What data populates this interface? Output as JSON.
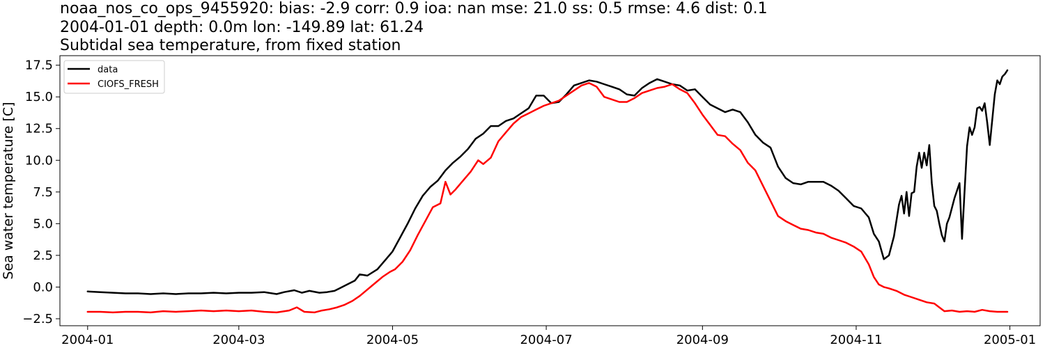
{
  "chart_data": {
    "type": "line",
    "title_lines": [
      "noaa_nos_co_ops_9455920: bias: -2.9  corr: 0.9  ioa: nan  mse: 21.0  ss: 0.5  rmse: 4.6  dist: 0.1",
      "2004-01-01 depth: 0.0m lon: -149.89 lat: 61.24",
      "Subtidal sea temperature, from fixed station"
    ],
    "xlabel": "",
    "ylabel": "Sea water temperature [C]",
    "x_ticks": [
      {
        "label": "2004-01",
        "day": 0
      },
      {
        "label": "2004-03",
        "day": 60
      },
      {
        "label": "2004-05",
        "day": 121
      },
      {
        "label": "2004-07",
        "day": 182
      },
      {
        "label": "2004-09",
        "day": 244
      },
      {
        "label": "2004-11",
        "day": 305
      },
      {
        "label": "2005-01",
        "day": 366
      }
    ],
    "y_ticks": [
      "17.5",
      "15.0",
      "12.5",
      "10.0",
      "7.5",
      "5.0",
      "2.5",
      "0.0",
      "−2.5"
    ],
    "y_tick_values": [
      17.5,
      15.0,
      12.5,
      10.0,
      7.5,
      5.0,
      2.5,
      0.0,
      -2.5
    ],
    "xlim": [
      -11,
      378
    ],
    "ylim": [
      -3.05,
      18.25
    ],
    "legend": {
      "position": "top-left",
      "entries": [
        "data",
        "CIOFS_FRESH"
      ]
    },
    "series": [
      {
        "name": "data",
        "color": "#000000",
        "points": [
          [
            0,
            -0.35
          ],
          [
            5,
            -0.4
          ],
          [
            10,
            -0.45
          ],
          [
            15,
            -0.5
          ],
          [
            20,
            -0.5
          ],
          [
            25,
            -0.55
          ],
          [
            30,
            -0.5
          ],
          [
            35,
            -0.55
          ],
          [
            40,
            -0.5
          ],
          [
            45,
            -0.5
          ],
          [
            50,
            -0.45
          ],
          [
            55,
            -0.5
          ],
          [
            60,
            -0.45
          ],
          [
            65,
            -0.45
          ],
          [
            70,
            -0.4
          ],
          [
            75,
            -0.55
          ],
          [
            78,
            -0.4
          ],
          [
            82,
            -0.25
          ],
          [
            85,
            -0.45
          ],
          [
            88,
            -0.3
          ],
          [
            92,
            -0.45
          ],
          [
            95,
            -0.4
          ],
          [
            98,
            -0.3
          ],
          [
            100,
            -0.1
          ],
          [
            103,
            0.2
          ],
          [
            106,
            0.5
          ],
          [
            108,
            1.0
          ],
          [
            111,
            0.9
          ],
          [
            115,
            1.4
          ],
          [
            118,
            2.1
          ],
          [
            121,
            2.8
          ],
          [
            124,
            3.9
          ],
          [
            127,
            5.0
          ],
          [
            130,
            6.2
          ],
          [
            133,
            7.2
          ],
          [
            136,
            7.9
          ],
          [
            139,
            8.4
          ],
          [
            142,
            9.2
          ],
          [
            145,
            9.8
          ],
          [
            148,
            10.3
          ],
          [
            151,
            10.9
          ],
          [
            154,
            11.7
          ],
          [
            157,
            12.1
          ],
          [
            160,
            12.7
          ],
          [
            163,
            12.7
          ],
          [
            166,
            13.1
          ],
          [
            169,
            13.3
          ],
          [
            172,
            13.7
          ],
          [
            175,
            14.1
          ],
          [
            178,
            15.1
          ],
          [
            181,
            15.1
          ],
          [
            184,
            14.5
          ],
          [
            187,
            14.6
          ],
          [
            190,
            15.2
          ],
          [
            193,
            15.9
          ],
          [
            196,
            16.1
          ],
          [
            199,
            16.3
          ],
          [
            202,
            16.2
          ],
          [
            205,
            16.0
          ],
          [
            208,
            15.8
          ],
          [
            211,
            15.6
          ],
          [
            214,
            15.2
          ],
          [
            217,
            15.1
          ],
          [
            220,
            15.7
          ],
          [
            223,
            16.1
          ],
          [
            226,
            16.4
          ],
          [
            229,
            16.2
          ],
          [
            232,
            16.0
          ],
          [
            235,
            15.9
          ],
          [
            238,
            15.5
          ],
          [
            241,
            15.6
          ],
          [
            244,
            15.0
          ],
          [
            247,
            14.4
          ],
          [
            250,
            14.1
          ],
          [
            253,
            13.8
          ],
          [
            256,
            14.0
          ],
          [
            259,
            13.8
          ],
          [
            262,
            13.0
          ],
          [
            265,
            12.0
          ],
          [
            268,
            11.4
          ],
          [
            271,
            11.0
          ],
          [
            274,
            9.5
          ],
          [
            277,
            8.6
          ],
          [
            280,
            8.2
          ],
          [
            283,
            8.1
          ],
          [
            286,
            8.3
          ],
          [
            289,
            8.3
          ],
          [
            292,
            8.3
          ],
          [
            295,
            8.0
          ],
          [
            298,
            7.6
          ],
          [
            301,
            7.0
          ],
          [
            304,
            6.4
          ],
          [
            307,
            6.2
          ],
          [
            310,
            5.5
          ],
          [
            312,
            4.2
          ],
          [
            314,
            3.6
          ],
          [
            316,
            2.2
          ],
          [
            318,
            2.5
          ],
          [
            320,
            4.0
          ],
          [
            322,
            6.5
          ],
          [
            323,
            7.2
          ],
          [
            324,
            5.8
          ],
          [
            325,
            7.5
          ],
          [
            326,
            5.6
          ],
          [
            327,
            7.4
          ],
          [
            328,
            7.5
          ],
          [
            329,
            9.5
          ],
          [
            330,
            10.6
          ],
          [
            331,
            9.4
          ],
          [
            332,
            10.6
          ],
          [
            333,
            9.6
          ],
          [
            334,
            11.2
          ],
          [
            335,
            8.2
          ],
          [
            336,
            6.4
          ],
          [
            337,
            6.0
          ],
          [
            338,
            5.0
          ],
          [
            339,
            4.1
          ],
          [
            340,
            3.6
          ],
          [
            341,
            5.0
          ],
          [
            342,
            5.5
          ],
          [
            344,
            7.0
          ],
          [
            346,
            8.2
          ],
          [
            347,
            3.8
          ],
          [
            348,
            7.5
          ],
          [
            349,
            11.1
          ],
          [
            350,
            12.6
          ],
          [
            351,
            12.0
          ],
          [
            352,
            12.6
          ],
          [
            353,
            14.1
          ],
          [
            354,
            14.2
          ],
          [
            355,
            13.9
          ],
          [
            356,
            14.5
          ],
          [
            357,
            13.0
          ],
          [
            358,
            11.2
          ],
          [
            359,
            13.2
          ],
          [
            360,
            15.2
          ],
          [
            361,
            16.3
          ],
          [
            362,
            16.0
          ],
          [
            363,
            16.6
          ],
          [
            364,
            16.8
          ],
          [
            365,
            17.1
          ]
        ]
      },
      {
        "name": "CIOFS_FRESH",
        "color": "#ff0000",
        "points": [
          [
            0,
            -1.95
          ],
          [
            5,
            -1.95
          ],
          [
            10,
            -2.0
          ],
          [
            15,
            -1.95
          ],
          [
            20,
            -1.95
          ],
          [
            25,
            -2.0
          ],
          [
            30,
            -1.9
          ],
          [
            35,
            -1.95
          ],
          [
            40,
            -1.9
          ],
          [
            45,
            -1.85
          ],
          [
            50,
            -1.9
          ],
          [
            55,
            -1.85
          ],
          [
            60,
            -1.9
          ],
          [
            65,
            -1.85
          ],
          [
            70,
            -1.95
          ],
          [
            75,
            -2.0
          ],
          [
            80,
            -1.85
          ],
          [
            83,
            -1.6
          ],
          [
            86,
            -1.95
          ],
          [
            90,
            -2.0
          ],
          [
            93,
            -1.85
          ],
          [
            96,
            -1.75
          ],
          [
            99,
            -1.6
          ],
          [
            102,
            -1.4
          ],
          [
            105,
            -1.1
          ],
          [
            108,
            -0.7
          ],
          [
            111,
            -0.2
          ],
          [
            114,
            0.3
          ],
          [
            117,
            0.8
          ],
          [
            120,
            1.2
          ],
          [
            122,
            1.4
          ],
          [
            125,
            2.0
          ],
          [
            128,
            2.9
          ],
          [
            131,
            4.1
          ],
          [
            134,
            5.2
          ],
          [
            137,
            6.3
          ],
          [
            140,
            6.6
          ],
          [
            142,
            8.3
          ],
          [
            144,
            7.3
          ],
          [
            146,
            7.7
          ],
          [
            149,
            8.4
          ],
          [
            152,
            9.1
          ],
          [
            155,
            10.0
          ],
          [
            157,
            9.7
          ],
          [
            160,
            10.2
          ],
          [
            163,
            11.5
          ],
          [
            166,
            12.2
          ],
          [
            169,
            12.9
          ],
          [
            172,
            13.4
          ],
          [
            175,
            13.7
          ],
          [
            178,
            14.0
          ],
          [
            181,
            14.3
          ],
          [
            184,
            14.5
          ],
          [
            187,
            14.7
          ],
          [
            190,
            15.1
          ],
          [
            193,
            15.5
          ],
          [
            196,
            15.9
          ],
          [
            199,
            16.1
          ],
          [
            202,
            15.8
          ],
          [
            205,
            15.0
          ],
          [
            208,
            14.8
          ],
          [
            211,
            14.6
          ],
          [
            214,
            14.6
          ],
          [
            217,
            14.9
          ],
          [
            220,
            15.3
          ],
          [
            223,
            15.5
          ],
          [
            226,
            15.7
          ],
          [
            229,
            15.8
          ],
          [
            232,
            16.0
          ],
          [
            235,
            15.6
          ],
          [
            238,
            15.3
          ],
          [
            241,
            14.5
          ],
          [
            244,
            13.6
          ],
          [
            247,
            12.8
          ],
          [
            250,
            12.0
          ],
          [
            253,
            11.9
          ],
          [
            256,
            11.3
          ],
          [
            259,
            10.8
          ],
          [
            262,
            9.8
          ],
          [
            265,
            9.2
          ],
          [
            268,
            8.0
          ],
          [
            271,
            6.8
          ],
          [
            274,
            5.6
          ],
          [
            277,
            5.2
          ],
          [
            280,
            4.9
          ],
          [
            283,
            4.6
          ],
          [
            286,
            4.5
          ],
          [
            289,
            4.3
          ],
          [
            292,
            4.2
          ],
          [
            295,
            3.9
          ],
          [
            298,
            3.7
          ],
          [
            301,
            3.5
          ],
          [
            304,
            3.2
          ],
          [
            307,
            2.8
          ],
          [
            310,
            1.8
          ],
          [
            312,
            0.8
          ],
          [
            314,
            0.2
          ],
          [
            316,
            0.0
          ],
          [
            318,
            -0.1
          ],
          [
            321,
            -0.3
          ],
          [
            324,
            -0.6
          ],
          [
            327,
            -0.8
          ],
          [
            330,
            -1.0
          ],
          [
            333,
            -1.2
          ],
          [
            336,
            -1.3
          ],
          [
            338,
            -1.6
          ],
          [
            340,
            -1.9
          ],
          [
            343,
            -1.85
          ],
          [
            346,
            -1.95
          ],
          [
            349,
            -1.9
          ],
          [
            352,
            -1.95
          ],
          [
            355,
            -1.8
          ],
          [
            358,
            -1.9
          ],
          [
            361,
            -1.95
          ],
          [
            365,
            -1.95
          ]
        ]
      }
    ]
  }
}
